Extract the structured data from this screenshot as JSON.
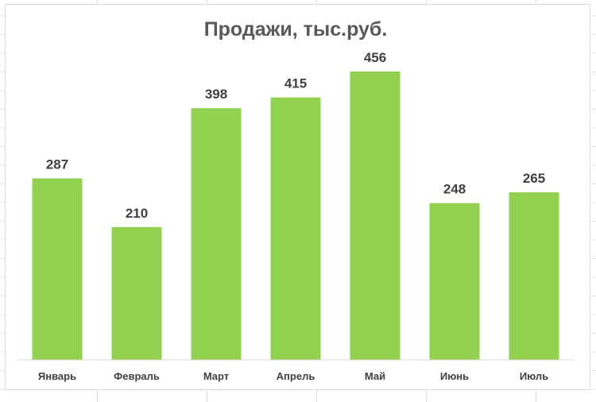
{
  "chart_data": {
    "type": "bar",
    "title": "Продажи, тыс.руб.",
    "categories": [
      "Январь",
      "Февраль",
      "Март",
      "Апрель",
      "Май",
      "Июнь",
      "Июль"
    ],
    "values": [
      287,
      210,
      398,
      415,
      456,
      248,
      265
    ],
    "xlabel": "",
    "ylabel": "",
    "ylim": [
      0,
      500
    ],
    "grid": false,
    "legend": "none",
    "data_labels": true,
    "colors": {
      "bar": "#92d050",
      "title": "#595959",
      "label": "#404040",
      "axis": "#d9d9d9"
    }
  }
}
